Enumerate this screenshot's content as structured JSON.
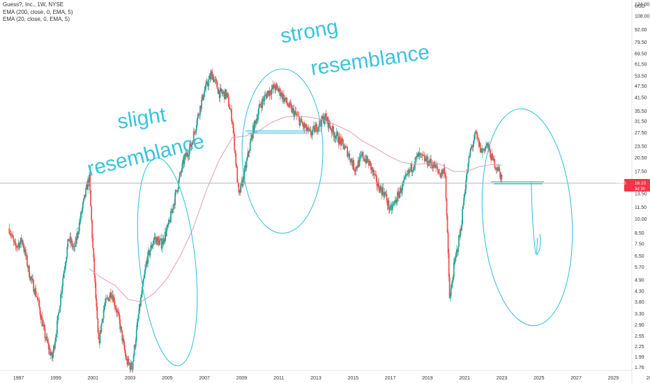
{
  "header": {
    "symbol_line": "Guess?, Inc., 1W, NYSE",
    "ema_lines": [
      "EMA (200, close, 0, EMA, 5)",
      "EMA (20, close, 0, EMA, 5)"
    ]
  },
  "annotations": {
    "slight_line1": "slight",
    "slight_line2": "resemblance",
    "strong_line1": "strong",
    "strong_line2": "resemblance",
    "side_mark": "d"
  },
  "price_badge": {
    "symbol": "GES",
    "price": "16.10",
    "countdown": "3d 3h",
    "color": "#f23645"
  },
  "colors": {
    "up": "#26a69a",
    "down": "#ef5350",
    "ema200": "#e89bb5",
    "ema20": "#d48aa8",
    "drawing": "#3cc3dc",
    "hline": "#4fc3d7"
  },
  "chart_data": {
    "type": "candlestick",
    "currency": "USD",
    "y_scale": "log",
    "ylim": [
      1.7,
      124
    ],
    "xlim": [
      1996,
      2030
    ],
    "y_ticks": [
      "124.00",
      "108.00",
      "92.00",
      "79.50",
      "69.50",
      "61.50",
      "53.50",
      "47.50",
      "41.50",
      "35.50",
      "31.50",
      "27.50",
      "23.50",
      "20.50",
      "17.50",
      "13.50",
      "11.50",
      "10.00",
      "8.50",
      "7.50",
      "6.50",
      "5.70",
      "4.90",
      "4.30",
      "3.80",
      "3.30",
      "2.90",
      "2.55",
      "2.25",
      "1.99",
      "1.76"
    ],
    "x_ticks": [
      "1997",
      "1999",
      "2001",
      "2003",
      "2005",
      "2007",
      "2009",
      "2011",
      "2013",
      "2015",
      "2017",
      "2019",
      "2021",
      "2023",
      "2025",
      "2027",
      "2029",
      "203"
    ],
    "price_path": [
      [
        1996.5,
        9.0
      ],
      [
        1996.8,
        7.2
      ],
      [
        1997.2,
        7.8
      ],
      [
        1997.6,
        5.2
      ],
      [
        1998.0,
        4.0
      ],
      [
        1998.4,
        2.6
      ],
      [
        1998.8,
        1.95
      ],
      [
        1999.1,
        3.0
      ],
      [
        1999.4,
        5.2
      ],
      [
        1999.7,
        8.0
      ],
      [
        2000.0,
        7.0
      ],
      [
        2000.4,
        11.0
      ],
      [
        2000.8,
        16.5
      ],
      [
        2001.0,
        7.0
      ],
      [
        2001.3,
        2.3
      ],
      [
        2001.6,
        3.6
      ],
      [
        2002.0,
        4.3
      ],
      [
        2002.4,
        3.1
      ],
      [
        2002.8,
        1.9
      ],
      [
        2003.1,
        1.75
      ],
      [
        2003.5,
        3.5
      ],
      [
        2003.9,
        6.2
      ],
      [
        2004.3,
        8.0
      ],
      [
        2004.7,
        7.5
      ],
      [
        2005.1,
        9.5
      ],
      [
        2005.5,
        14.0
      ],
      [
        2005.9,
        20.0
      ],
      [
        2006.3,
        24.0
      ],
      [
        2006.7,
        35.0
      ],
      [
        2007.0,
        45.0
      ],
      [
        2007.4,
        55.0
      ],
      [
        2007.8,
        44.0
      ],
      [
        2008.2,
        43.0
      ],
      [
        2008.5,
        32.0
      ],
      [
        2008.85,
        13.0
      ],
      [
        2009.2,
        18.0
      ],
      [
        2009.6,
        28.0
      ],
      [
        2010.0,
        38.0
      ],
      [
        2010.4,
        44.0
      ],
      [
        2010.8,
        47.0
      ],
      [
        2011.1,
        44.0
      ],
      [
        2011.5,
        38.0
      ],
      [
        2011.9,
        34.0
      ],
      [
        2012.3,
        30.0
      ],
      [
        2012.7,
        27.0
      ],
      [
        2013.1,
        30.0
      ],
      [
        2013.5,
        33.0
      ],
      [
        2013.9,
        28.0
      ],
      [
        2014.3,
        25.0
      ],
      [
        2014.7,
        22.0
      ],
      [
        2015.1,
        18.0
      ],
      [
        2015.5,
        21.0
      ],
      [
        2015.9,
        19.0
      ],
      [
        2016.3,
        15.0
      ],
      [
        2016.7,
        13.5
      ],
      [
        2017.0,
        11.0
      ],
      [
        2017.3,
        12.5
      ],
      [
        2017.7,
        15.0
      ],
      [
        2018.1,
        18.0
      ],
      [
        2018.5,
        21.0
      ],
      [
        2018.9,
        20.0
      ],
      [
        2019.3,
        19.0
      ],
      [
        2019.7,
        17.0
      ],
      [
        2019.95,
        18.0
      ],
      [
        2020.2,
        3.8
      ],
      [
        2020.4,
        5.5
      ],
      [
        2020.8,
        9.0
      ],
      [
        2021.0,
        14.0
      ],
      [
        2021.3,
        22.0
      ],
      [
        2021.6,
        27.0
      ],
      [
        2021.9,
        22.0
      ],
      [
        2022.2,
        24.0
      ],
      [
        2022.5,
        20.0
      ],
      [
        2022.8,
        18.0
      ],
      [
        2023.0,
        16.1
      ]
    ],
    "ema200_path": [
      [
        2000.8,
        5.6
      ],
      [
        2001.5,
        5.0
      ],
      [
        2002.2,
        4.6
      ],
      [
        2002.9,
        3.9
      ],
      [
        2003.6,
        3.8
      ],
      [
        2004.3,
        4.2
      ],
      [
        2005.0,
        5.0
      ],
      [
        2005.7,
        6.5
      ],
      [
        2006.4,
        9.0
      ],
      [
        2007.1,
        14.0
      ],
      [
        2007.8,
        20.0
      ],
      [
        2008.5,
        26.0
      ],
      [
        2009.2,
        26.5
      ],
      [
        2009.9,
        28.0
      ],
      [
        2010.6,
        31.0
      ],
      [
        2011.3,
        33.0
      ],
      [
        2012.0,
        33.5
      ],
      [
        2012.7,
        33.0
      ],
      [
        2013.4,
        32.0
      ],
      [
        2014.1,
        30.0
      ],
      [
        2014.8,
        28.0
      ],
      [
        2015.5,
        25.0
      ],
      [
        2016.2,
        23.0
      ],
      [
        2016.9,
        21.0
      ],
      [
        2017.6,
        19.5
      ],
      [
        2018.3,
        19.0
      ],
      [
        2019.0,
        19.2
      ],
      [
        2019.7,
        19.0
      ],
      [
        2020.4,
        17.5
      ],
      [
        2021.1,
        17.5
      ],
      [
        2021.8,
        18.5
      ],
      [
        2022.5,
        19.0
      ],
      [
        2023.0,
        18.8
      ]
    ]
  }
}
